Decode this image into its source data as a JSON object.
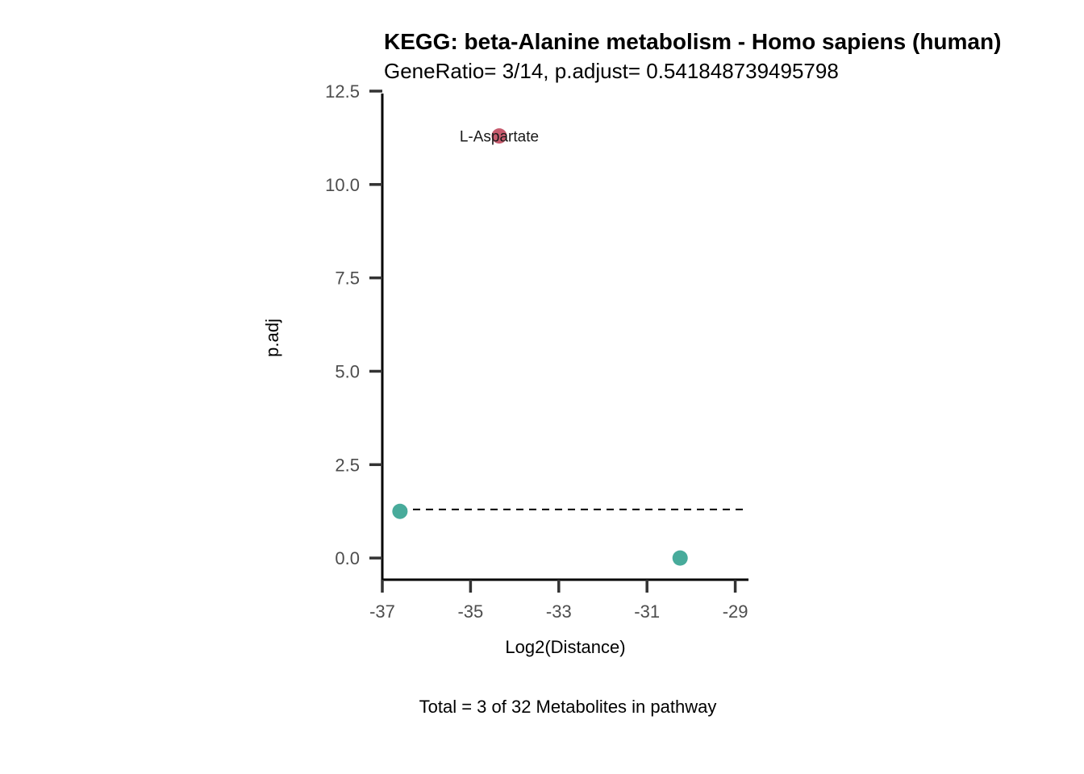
{
  "chart_data": {
    "type": "scatter",
    "title": "KEGG: beta-Alanine metabolism - Homo sapiens (human)",
    "subtitle": "GeneRatio= 3/14, p.adjust= 0.541848739495798",
    "xlabel": "Log2(Distance)",
    "ylabel": "p.adj",
    "caption": "Total = 3 of 32 Metabolites in pathway",
    "xlim": [
      -37.0,
      -28.7
    ],
    "ylim": [
      -0.58,
      12.5
    ],
    "xticks": [
      -37,
      -35,
      -33,
      -31,
      -29
    ],
    "xtick_labels": [
      "-37",
      "-35",
      "-33",
      "-31",
      "-29"
    ],
    "yticks": [
      0,
      2.5,
      5,
      7.5,
      10,
      12.5
    ],
    "ytick_labels": [
      "0.0",
      "2.5",
      "5.0",
      "7.5",
      "10.0",
      "12.5"
    ],
    "threshold_y": 1.3,
    "grid": false,
    "legend": "none",
    "points": [
      {
        "x": -36.6,
        "y": 1.25,
        "color": "#48ab9b",
        "label": ""
      },
      {
        "x": -34.35,
        "y": 11.3,
        "color": "#c75b6e",
        "label": "L-Aspartate"
      },
      {
        "x": -30.25,
        "y": 0.0,
        "color": "#48ab9b",
        "label": ""
      }
    ]
  }
}
